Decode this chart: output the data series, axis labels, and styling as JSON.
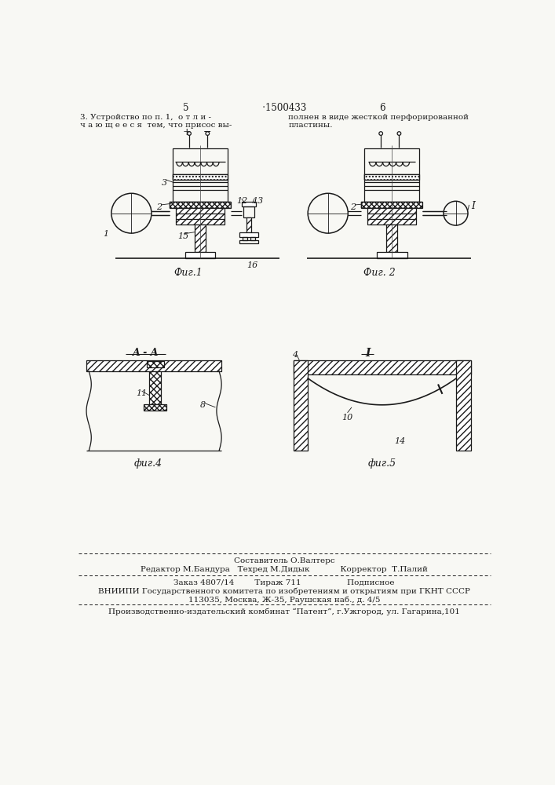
{
  "page_color": "#f8f8f4",
  "lc": "#1a1a1a",
  "header": "5                         ·1500433                         6",
  "txt_left1": "3. Устройство по п. 1,  о т л и -",
  "txt_left2": "ч а ю щ е е с я  тем, что присос вы-",
  "txt_right1": "полнен в виде жесткой перфорированной",
  "txt_right2": "пластины.",
  "fig1_caption": "Фиг.1",
  "fig2_caption": "Фиг. 2",
  "fig4_caption": "фиг.4",
  "fig5_caption": "фиг.5",
  "aa_label": "A - A",
  "i_label": "I",
  "f_compose": "Составитель О.Валтерс",
  "f_editor": "Редактор М.Бандура",
  "f_tech": "Техред М.Дидык",
  "f_correct": "Корректор  Т.Палий",
  "f_order": "Заказ 4807/14",
  "f_print": "Тираж 711",
  "f_sign": "Подписное",
  "f_org": "ВНИИПИ Государственного комитета по изобретениям и открытиям при ГКНТ СССР",
  "f_addr": "113035, Москва, Ж-35, Раушская наб., д. 4/5",
  "f_plant": "Производственно-издательский комбинат “Патент”, г.Ужгород, ул. Гагарина,101"
}
